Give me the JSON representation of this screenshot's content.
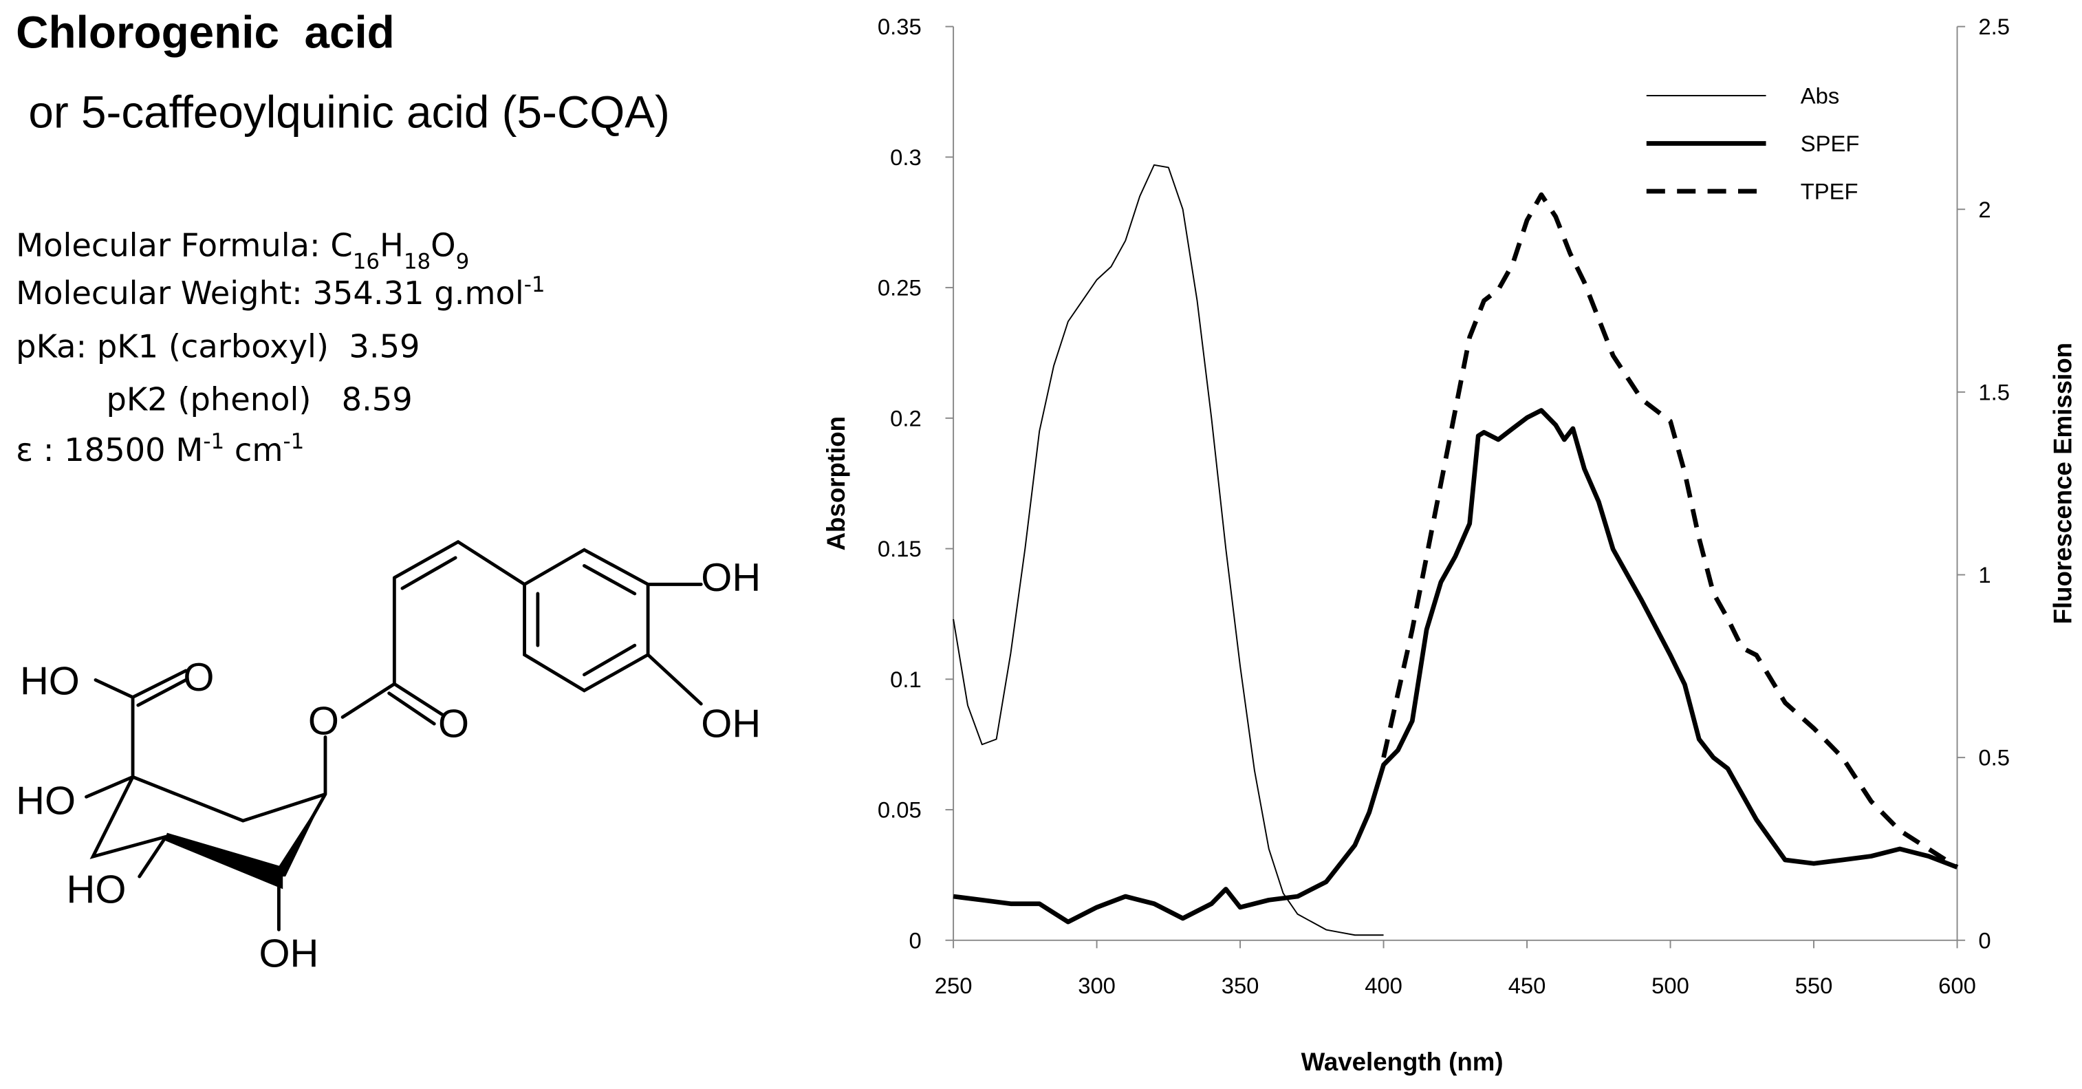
{
  "header": {
    "title": "Chlorogenic  acid",
    "subtitle": " or 5-caffeoylquinic acid (5-CQA)"
  },
  "properties": {
    "formula_label": "Molecular Formula: ",
    "formula": [
      {
        "element": "C",
        "count": "16"
      },
      {
        "element": "H",
        "count": "18"
      },
      {
        "element": "O",
        "count": "9"
      }
    ],
    "weight": "Molecular Weight: 354.31 g.mol",
    "weight_sup": "-1",
    "pka1": "pKa: pK1 (carboxyl)  3.59",
    "pka2": "pK2 (phenol)   8.59",
    "epsilon": [
      "ε : 18500 M",
      "-1",
      " cm",
      "-1"
    ]
  },
  "structure": {
    "labels": [
      "OH",
      "OH",
      "HO",
      "O",
      "O",
      "O",
      "HO",
      "HO",
      "OH"
    ]
  },
  "chart_data": {
    "type": "line",
    "x_label": "Wavelength (nm)",
    "y_label": "Absorption",
    "y2_label": "Fluorescence Emission",
    "xlim": [
      250,
      600
    ],
    "xticks": [
      250,
      300,
      350,
      400,
      450,
      500,
      550,
      600
    ],
    "ylim": [
      0,
      0.35
    ],
    "yticks": [
      0,
      0.05,
      0.1,
      0.15,
      0.2,
      0.25,
      0.3,
      0.35
    ],
    "y2lim": [
      0,
      2.5
    ],
    "y2ticks": [
      0,
      0.5,
      1,
      1.5,
      2,
      2.5
    ],
    "legend": "top-right",
    "series": [
      {
        "name": "Abs",
        "color": "#000000",
        "style": "solid",
        "width": 1,
        "x": [
          250,
          255,
          260,
          265,
          270,
          275,
          280,
          285,
          290,
          295,
          300,
          305,
          310,
          315,
          320,
          325,
          330,
          335,
          340,
          345,
          350,
          355,
          360,
          365,
          370,
          375,
          380,
          385,
          390,
          395,
          400
        ],
        "values": [
          0.123,
          0.09,
          0.075,
          0.077,
          0.11,
          0.15,
          0.195,
          0.22,
          0.237,
          0.245,
          0.253,
          0.258,
          0.268,
          0.285,
          0.297,
          0.296,
          0.28,
          0.245,
          0.2,
          0.15,
          0.105,
          0.065,
          0.035,
          0.018,
          0.01,
          0.007,
          0.004,
          0.003,
          0.002,
          0.002,
          0.002
        ]
      },
      {
        "name": "SPEF",
        "color": "#000000",
        "style": "solid",
        "width": 3.5,
        "axis": "y2",
        "x": [
          250,
          260,
          270,
          280,
          290,
          300,
          310,
          320,
          330,
          340,
          345,
          350,
          360,
          370,
          380,
          390,
          395,
          400,
          405,
          410,
          415,
          420,
          425,
          430,
          433,
          435,
          440,
          445,
          450,
          455,
          460,
          463,
          466,
          470,
          475,
          480,
          490,
          500,
          505,
          510,
          515,
          520,
          530,
          540,
          550,
          560,
          570,
          580,
          590,
          600
        ],
        "values": [
          0.12,
          0.11,
          0.1,
          0.1,
          0.05,
          0.09,
          0.12,
          0.1,
          0.06,
          0.1,
          0.14,
          0.09,
          0.11,
          0.12,
          0.16,
          0.26,
          0.35,
          0.48,
          0.52,
          0.6,
          0.85,
          0.98,
          1.05,
          1.14,
          1.38,
          1.39,
          1.37,
          1.4,
          1.43,
          1.45,
          1.41,
          1.37,
          1.4,
          1.29,
          1.2,
          1.07,
          0.93,
          0.78,
          0.7,
          0.55,
          0.5,
          0.47,
          0.33,
          0.22,
          0.21,
          0.22,
          0.23,
          0.25,
          0.23,
          0.2
        ]
      },
      {
        "name": "TPEF",
        "color": "#000000",
        "style": "dashed",
        "width": 3.5,
        "axis": "y2",
        "x": [
          400,
          410,
          420,
          430,
          435,
          440,
          445,
          450,
          455,
          460,
          465,
          470,
          480,
          490,
          500,
          505,
          510,
          515,
          520,
          525,
          530,
          540,
          550,
          560,
          570,
          580,
          590,
          600
        ],
        "values": [
          0.5,
          0.85,
          1.25,
          1.65,
          1.75,
          1.78,
          1.85,
          1.97,
          2.04,
          1.98,
          1.88,
          1.8,
          1.6,
          1.48,
          1.42,
          1.28,
          1.1,
          0.95,
          0.88,
          0.8,
          0.78,
          0.65,
          0.58,
          0.5,
          0.38,
          0.3,
          0.25,
          0.2
        ]
      }
    ]
  }
}
